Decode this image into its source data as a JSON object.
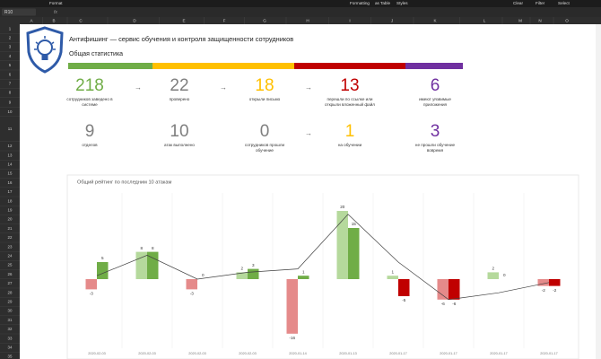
{
  "toolbar": [
    "Format",
    "Formatting",
    "as Table",
    "Styles",
    "Clear",
    "Filter",
    "Select"
  ],
  "name_box": "R10",
  "columns": [
    "A",
    "B",
    "C",
    "D",
    "E",
    "F",
    "G",
    "H",
    "I",
    "J",
    "K",
    "L",
    "M",
    "N",
    "O"
  ],
  "rows": [
    "1",
    "2",
    "3",
    "4",
    "5",
    "6",
    "7",
    "8",
    "9",
    "10",
    "11",
    "12",
    "13",
    "14",
    "15",
    "16",
    "17",
    "18",
    "19",
    "20",
    "21",
    "22",
    "23",
    "24",
    "25",
    "26",
    "27",
    "28",
    "29",
    "30",
    "31",
    "32",
    "33",
    "34",
    "35"
  ],
  "title": "Антифишинг — сервис обучения и контроля защищенности сотрудников",
  "subtitle": "Общая статистика",
  "color_bar": [
    "#70ad47",
    "#ffc000",
    "#c00000",
    "#7030a0"
  ],
  "stats": [
    {
      "value": 218,
      "label": "сотрудников заведено в системе",
      "color": "#70ad47"
    },
    {
      "value": 22,
      "label": "проверено",
      "color": "#7f7f7f"
    },
    {
      "value": 18,
      "label": "открыли письмо",
      "color": "#ffc000"
    },
    {
      "value": 13,
      "label": "перешли по ссылке или открыли вложенный файл",
      "color": "#c00000"
    },
    {
      "value": 6,
      "label": "имеют уязвимые приложения",
      "color": "#7030a0"
    },
    {
      "value": 9,
      "label": "отделов",
      "color": "#7f7f7f"
    },
    {
      "value": 10,
      "label": "атак выполнено",
      "color": "#7f7f7f"
    },
    {
      "value": 0,
      "label": "сотрудников прошли обучение",
      "color": "#7f7f7f"
    },
    {
      "value": 1,
      "label": "на обучении",
      "color": "#ffc000"
    },
    {
      "value": 3,
      "label": "не прошли обучение вовремя",
      "color": "#7030a0"
    }
  ],
  "chart_data": {
    "type": "bar",
    "title": "Общий рейтинг по последним 10 атакам",
    "categories": [
      "2020-02-03",
      "2020-02-03",
      "2020-02-03",
      "2020-02-03",
      "2020-01-14",
      "2020-01-13",
      "2020-01-17",
      "2020-01-17",
      "2020-01-17",
      "2020-01-17"
    ],
    "series": [
      {
        "type": "bar",
        "color": "#b5d99c",
        "negative_color": "#e58a8a",
        "values": [
          -3,
          8,
          -3,
          2,
          -16,
          20,
          1,
          -6,
          2,
          -2
        ]
      },
      {
        "type": "bar",
        "color": "#70ad47",
        "negative_color": "#c00000",
        "values": [
          5,
          8,
          0,
          3,
          1,
          15,
          -5,
          -6,
          0,
          -2
        ]
      },
      {
        "type": "line",
        "color": "#404040",
        "values": [
          1,
          7,
          0,
          2,
          3,
          19,
          5,
          -6,
          -4,
          -1
        ]
      }
    ],
    "data_labels": true
  }
}
